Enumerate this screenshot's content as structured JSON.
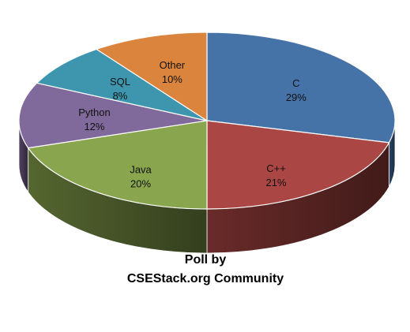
{
  "chart_data": {
    "type": "pie",
    "style": "3d",
    "slices": [
      {
        "label": "C",
        "percent_label": "29%",
        "value": 29,
        "color": "#4572A7"
      },
      {
        "label": "C++",
        "percent_label": "21%",
        "value": 21,
        "color": "#AA4643"
      },
      {
        "label": "Java",
        "percent_label": "20%",
        "value": 20,
        "color": "#89A54E"
      },
      {
        "label": "Python",
        "percent_label": "12%",
        "value": 12,
        "color": "#80699B"
      },
      {
        "label": "SQL",
        "percent_label": "8%",
        "value": 8,
        "color": "#3D96AE"
      },
      {
        "label": "Other",
        "percent_label": "10%",
        "value": 10,
        "color": "#DB843D"
      }
    ],
    "title_lines": [
      "Poll by",
      "CSEStack.org Community"
    ],
    "legend": "none"
  }
}
